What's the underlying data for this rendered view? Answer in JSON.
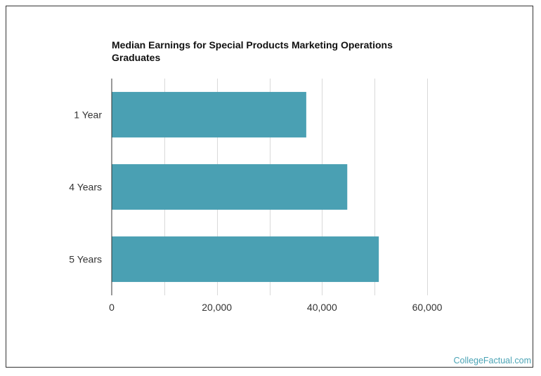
{
  "chart_data": {
    "type": "bar",
    "orientation": "horizontal",
    "title": "Median Earnings for Special Products Marketing Operations Graduates",
    "categories": [
      "1 Year",
      "4 Years",
      "5 Years"
    ],
    "values": [
      37000,
      44800,
      50800
    ],
    "xlim": [
      0,
      60000
    ],
    "xticks": [
      0,
      20000,
      40000,
      60000
    ],
    "xtick_labels": [
      "0",
      "20,000",
      "40,000",
      "60,000"
    ],
    "xlabel": "",
    "ylabel": "",
    "grid": true,
    "bar_color": "#4aa0b3",
    "grid_color": "#d9d9d9"
  },
  "footer": {
    "brand": "CollegeFactual.com",
    "brand_color": "#4aa3b5"
  }
}
